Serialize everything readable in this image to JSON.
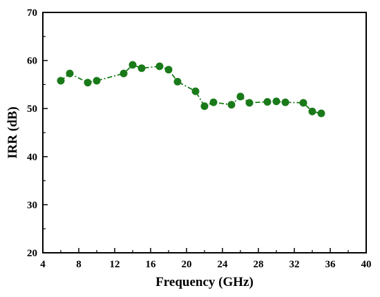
{
  "chart_data": {
    "type": "line",
    "title": "",
    "xlabel": "Frequency (GHz)",
    "ylabel": "IRR (dB)",
    "xlim": [
      4,
      40
    ],
    "ylim": [
      20,
      70
    ],
    "x_ticks": [
      4,
      8,
      12,
      16,
      20,
      24,
      28,
      32,
      36,
      40
    ],
    "y_ticks": [
      20,
      30,
      40,
      50,
      60,
      70
    ],
    "grid": false,
    "legend": "none",
    "series": [
      {
        "color": "#1a7a1a",
        "marker": "circle",
        "line_style": "dash-dot",
        "x": [
          6,
          7,
          9,
          10,
          13,
          14,
          15,
          17,
          18,
          19,
          21,
          22,
          23,
          25,
          26,
          27,
          29,
          30,
          31,
          33,
          34,
          35
        ],
        "y": [
          55.8,
          57.3,
          55.4,
          55.8,
          57.3,
          59.1,
          58.4,
          58.8,
          58.1,
          55.6,
          53.6,
          50.5,
          51.3,
          50.8,
          52.5,
          51.2,
          51.4,
          51.5,
          51.3,
          51.2,
          49.4,
          49.0
        ]
      }
    ]
  }
}
